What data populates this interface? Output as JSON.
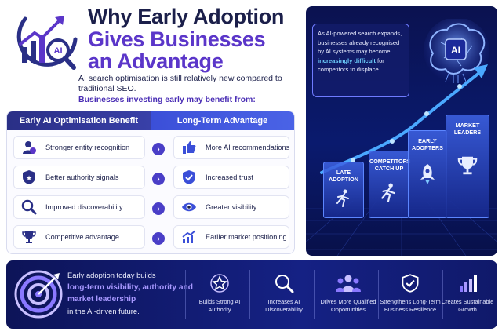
{
  "header": {
    "title_line1": "Why Early Adoption",
    "title_line2": "Gives Businesses",
    "title_line3": "an Advantage",
    "logo_text": "AI",
    "intro": "AI search optimisation is still relatively new compared to traditional SEO.",
    "intro_sub": "Businesses investing early may benefit from:"
  },
  "table": {
    "col_left": "Early AI Optimisation Benefit",
    "col_right": "Long-Term Advantage",
    "rows": [
      {
        "left": "Stronger entity recognition",
        "left_icon": "user-star-icon",
        "right": "More AI recommendations",
        "right_icon": "thumbs-up-icon"
      },
      {
        "left": "Better authority signals",
        "left_icon": "shield-star-icon",
        "right": "Increased trust",
        "right_icon": "shield-check-icon"
      },
      {
        "left": "Improved discoverability",
        "left_icon": "magnifier-icon",
        "right": "Greater visibility",
        "right_icon": "eye-icon"
      },
      {
        "left": "Competitive advantage",
        "left_icon": "trophy-icon",
        "right": "Earlier market positioning",
        "right_icon": "growth-chart-icon"
      }
    ]
  },
  "panel": {
    "callout_before": "As AI-powered search expands, businesses already recognised by AI systems may become",
    "callout_highlight": "increasingly difficult",
    "callout_after": "for competitors to displace.",
    "brain_label": "AI",
    "stages": [
      {
        "label": "LATE ADOPTION",
        "icon": "runner-icon"
      },
      {
        "label": "COMPETITORS CATCH UP",
        "icon": "runner-icon"
      },
      {
        "label": "EARLY ADOPTERS",
        "icon": "rocket-icon"
      },
      {
        "label": "MARKET LEADERS",
        "icon": "trophy-icon"
      }
    ]
  },
  "banner": {
    "text_before": "Early adoption today builds",
    "text_highlight": "long-term visibility, authority and market leadership",
    "text_after": "in the AI-driven future.",
    "benefits": [
      {
        "label": "Builds Strong AI Authority",
        "icon": "star-badge-icon"
      },
      {
        "label": "Increases AI Discoverability",
        "icon": "search-icon"
      },
      {
        "label": "Drives More Qualified Opportunities",
        "icon": "people-icon"
      },
      {
        "label": "Strengthens Long-Term Business Resilience",
        "icon": "shield-check-icon"
      },
      {
        "label": "Creates Sustainable Growth",
        "icon": "bar-growth-icon"
      }
    ]
  },
  "colors": {
    "navy": "#1b1f4a",
    "purple": "#5b36c9",
    "accent_blue": "#3b4fd8",
    "highlight_cyan": "#6fd3ff",
    "highlight_lilac": "#a898ff"
  }
}
